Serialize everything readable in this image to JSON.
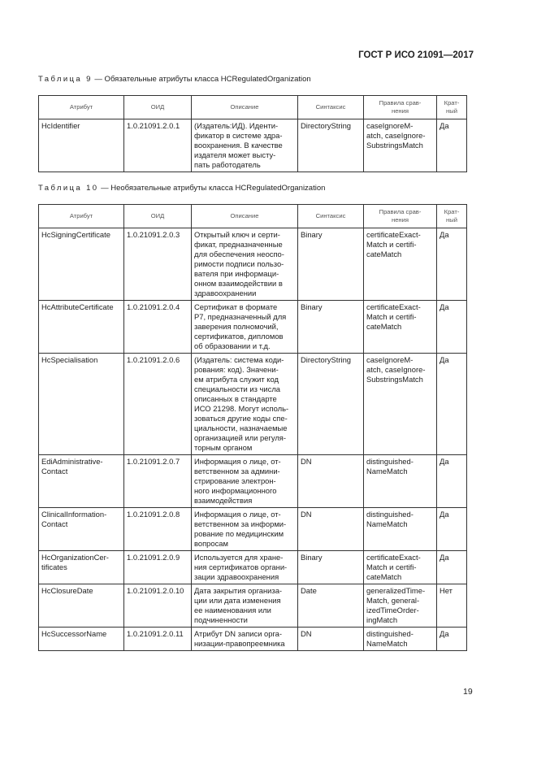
{
  "header": {
    "doc_code": "ГОСТ Р ИСО 21091—2017"
  },
  "table9": {
    "caption_prefix": "Таблица 9",
    "caption_text": " — Обязательные атрибуты класса HCRegulatedOrganization",
    "columns": [
      "Атрибут",
      "ОИД",
      "Описание",
      "Синтаксис",
      "Правила срав-\nнения",
      "Крат-\nный"
    ],
    "rows": [
      [
        "HcIdentifier",
        "1.0.21091.2.0.1",
        "(Издатель:ИД). Иденти-\nфикатор в системе здра-\nвоохранения. В качестве\nиздателя может высту-\nпать работодатель",
        "DirectoryString",
        "caseIgnoreM-\natch, caseIgnore-\nSubstringsMatch",
        "Да"
      ]
    ]
  },
  "table10": {
    "caption_prefix": "Таблица 10",
    "caption_text": " — Необязательные атрибуты класса HCRegulatedOrganization",
    "columns": [
      "Атрибут",
      "ОИД",
      "Описание",
      "Синтаксис",
      "Правила срав-\nнения",
      "Крат-\nный"
    ],
    "rows": [
      [
        "HcSigningCertificate",
        "1.0.21091.2.0.3",
        "Открытый ключ и серти-\nфикат, предназначенные\nдля обеспечения неоспо-\nримости подписи пользо-\nвателя при информаци-\nонном взаимодействии в\nздравоохранении",
        "Binary",
        "certificateExact-\nMatch и certifi-\ncateMatch",
        "Да"
      ],
      [
        "HcAttributeCertificate",
        "1.0.21091.2.0.4",
        "Сертификат в формате\nP7, предназначенный для\nзаверения полномочий,\nсертификатов, дипломов\nоб образовании и т.д.",
        "Binary",
        "certificateExact-\nMatch и certifi-\ncateMatch",
        "Да"
      ],
      [
        "HcSpecialisation",
        "1.0.21091.2.0.6",
        "(Издатель: система коди-\nрования: код). Значени-\nем атрибута служит код\nспециальности из числа\nописанных в стандарте\nИСО 21298. Могут исполь-\nзоваться другие коды спе-\nциальности, назначаемые\nорганизацией или регуля-\nторным органом",
        "DirectoryString",
        "caseIgnoreM-\natch, caseIgnore-\nSubstringsMatch",
        "Да"
      ],
      [
        "EdiAdministrative-\nContact",
        "1.0.21091.2.0.7",
        "Информация о лице, от-\nветственном за админи-\nстрирование электрон-\nного информационного\nвзаимодействия",
        "DN",
        "distinguished-\nNameMatch",
        "Да"
      ],
      [
        "ClinicalInformation-\nContact",
        "1.0.21091.2.0.8",
        "Информация о лице, от-\nветственном за информи-\nрование по медицинским\nвопросам",
        "DN",
        "distinguished-\nNameMatch",
        "Да"
      ],
      [
        "HcOrganizationCer-\ntificates",
        "1.0.21091.2.0.9",
        "Используется для хране-\nния сертификатов органи-\nзации здравоохранения",
        "Binary",
        "certificateExact-\nMatch и certifi-\ncateMatch",
        "Да"
      ],
      [
        "HcClosureDate",
        "1.0.21091.2.0.10",
        "Дата закрытия организа-\nции или дата изменения\nее наименования или\nподчиненности",
        "Date",
        "generalizedTime-\nMatch, general-\nizedTimeOrder-\ningMatch",
        "Нет"
      ],
      [
        "HcSuccessorName",
        "1.0.21091.2.0.11",
        "Атрибут DN записи орга-\nнизации-правопреемника",
        "DN",
        "distinguished-\nNameMatch",
        "Да"
      ]
    ]
  },
  "footer": {
    "page_number": "19"
  }
}
